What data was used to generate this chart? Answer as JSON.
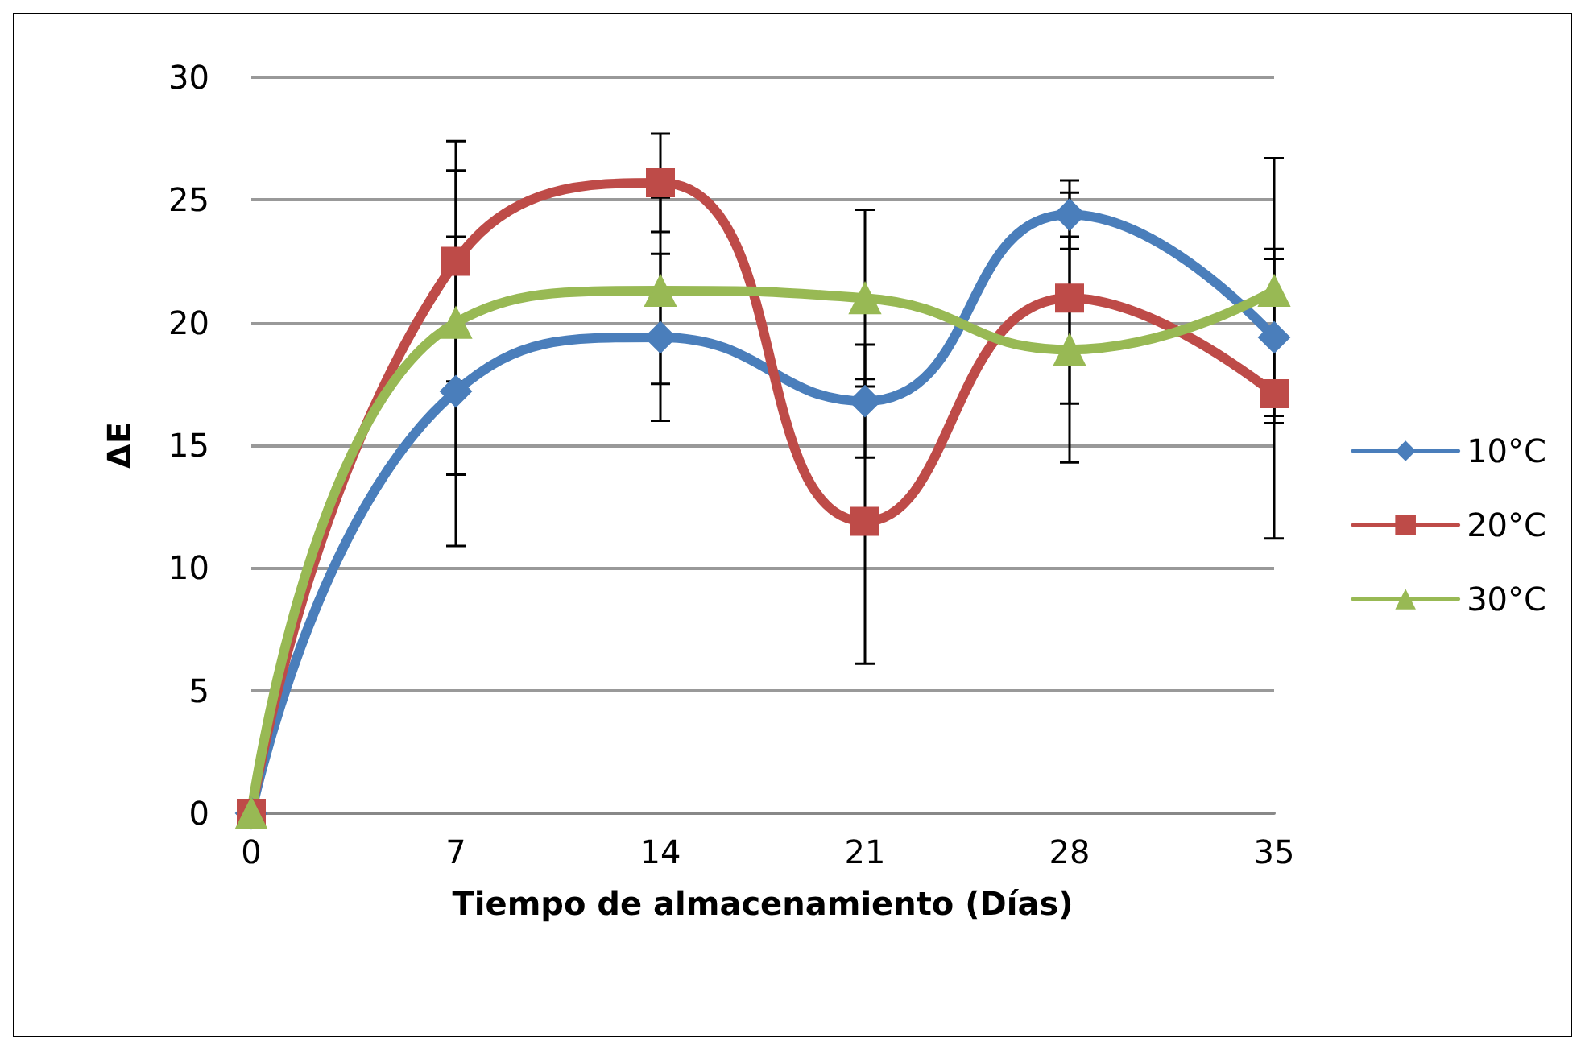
{
  "chart_data": {
    "type": "line",
    "xlabel": "Tiempo de almacenamiento (Días)",
    "ylabel": "ΔE",
    "x": [
      0,
      7,
      14,
      21,
      28,
      35
    ],
    "xlim": [
      0,
      35
    ],
    "xticks": [
      0,
      7,
      14,
      21,
      28,
      35
    ],
    "ylim": [
      0,
      30
    ],
    "yticks": [
      0,
      5,
      10,
      15,
      20,
      25,
      30
    ],
    "grid": "y",
    "legend": "right",
    "line_style": "solid",
    "series": [
      {
        "name": "10°C",
        "color": "#4a7ebb",
        "marker": "diamond",
        "values": [
          0,
          17.2,
          19.4,
          16.8,
          24.4,
          19.4
        ],
        "errors": [
          null,
          6.3,
          3.4,
          2.3,
          1.4,
          3.2
        ]
      },
      {
        "name": "20°C",
        "color": "#be4b48",
        "marker": "square",
        "values": [
          0,
          22.5,
          25.7,
          11.9,
          21.0,
          17.1
        ],
        "errors": [
          null,
          4.9,
          2.0,
          5.8,
          4.3,
          5.9
        ]
      },
      {
        "name": "30°C",
        "color": "#98b954",
        "marker": "triangle",
        "values": [
          0,
          20.0,
          21.3,
          21.0,
          18.9,
          21.3
        ],
        "errors": [
          null,
          6.2,
          3.8,
          3.6,
          4.6,
          5.4
        ]
      }
    ]
  }
}
